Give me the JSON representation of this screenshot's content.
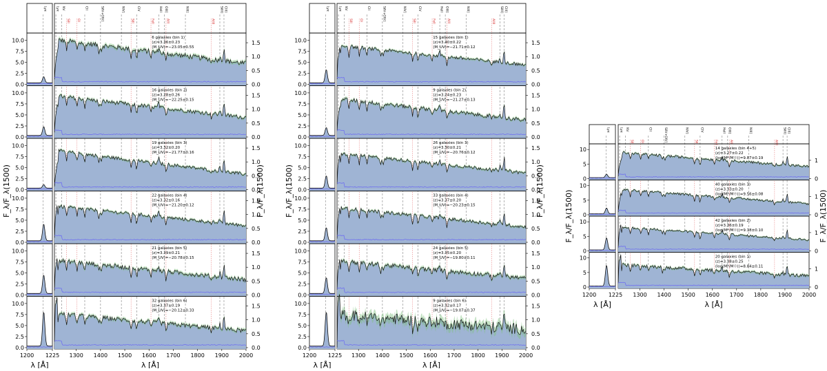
{
  "line_labels": {
    "top": [
      {
        "label": "Lyα",
        "wave": 1216,
        "color": "#333333",
        "style": "dashed"
      },
      {
        "label": "NV",
        "wave": 1240,
        "color": "#333333",
        "style": "dashed"
      },
      {
        "label": "SiII",
        "wave": 1260,
        "color": "#d62728",
        "style": "dotted"
      },
      {
        "label": "OI",
        "wave": 1303,
        "color": "#d62728",
        "style": "dotted"
      },
      {
        "label": "CII",
        "wave": 1335,
        "color": "#333333",
        "style": "dashed"
      },
      {
        "label": "SiIV+OIV]",
        "wave": 1400,
        "color": "#333333",
        "style": "dashed"
      },
      {
        "label": "NIV]",
        "wave": 1486,
        "color": "#333333",
        "style": "dashed"
      },
      {
        "label": "SiII",
        "wave": 1526,
        "color": "#d62728",
        "style": "dotted"
      },
      {
        "label": "CIV",
        "wave": 1549,
        "color": "#333333",
        "style": "dashed"
      },
      {
        "label": "FeII",
        "wave": 1608,
        "color": "#d62728",
        "style": "dotted"
      },
      {
        "label": "HeII",
        "wave": 1640,
        "color": "#333333",
        "style": "dashed"
      },
      {
        "label": "AlII",
        "wave": 1670,
        "color": "#d62728",
        "style": "dotted"
      },
      {
        "label": "OIII]",
        "wave": 1663,
        "color": "#333333",
        "style": "dashed"
      },
      {
        "label": "NIII]",
        "wave": 1750,
        "color": "#333333",
        "style": "dashed"
      },
      {
        "label": "AlIII",
        "wave": 1857,
        "color": "#d62728",
        "style": "dotted"
      },
      {
        "label": "SiIII]",
        "wave": 1892,
        "color": "#333333",
        "style": "dashed"
      },
      {
        "label": "CIII]",
        "wave": 1909,
        "color": "#333333",
        "style": "dashed"
      }
    ]
  },
  "chart_data": [
    {
      "type": "line",
      "panel": "left",
      "xlabel": "λ [Å]",
      "ylabel_left": "F_λ/F_λ(1500)",
      "ylabel_right": "F_λ/F_λ(1500)",
      "xlim_zoom": [
        1200,
        1225
      ],
      "xticks_zoom": [
        "1200",
        "1225"
      ],
      "xlim_main": [
        1210,
        2000
      ],
      "xticks_main": [
        1300,
        1400,
        1500,
        1600,
        1700,
        1800,
        1900,
        2000
      ],
      "ylim_left": [
        0,
        11
      ],
      "yticks_left": [
        "0.0",
        "2.5",
        "5.0",
        "7.5",
        "10.0"
      ],
      "ylim_right": [
        0,
        1.75
      ],
      "yticks_right": [
        "0.0",
        "0.5",
        "1.0",
        "1.5"
      ],
      "series": [
        {
          "text": [
            "6 galaxies (bin 1)",
            "⟨z⟩=3.36±0.23",
            "⟨M_UV⟩=−23.05±0.55"
          ],
          "lya_peak": 1.4,
          "level": 1.3,
          "slope": -0.55,
          "noise": 0.09
        },
        {
          "text": [
            "16 galaxies (bin 2)",
            "⟨z⟩=3.28±0.26",
            "⟨M_UV⟩=−22.25±0.15"
          ],
          "lya_peak": 2.0,
          "level": 1.2,
          "slope": -0.5,
          "noise": 0.07
        },
        {
          "text": [
            "19 galaxies (bin 3)",
            "⟨z⟩=3.32±0.20",
            "⟨M_UV⟩=−21.77±0.16"
          ],
          "lya_peak": 0.8,
          "level": 1.1,
          "slope": -0.55,
          "noise": 0.06
        },
        {
          "text": [
            "22 galaxies (bin 4)",
            "⟨z⟩=3.32±0.16",
            "⟨M_UV⟩=−21.20±0.12"
          ],
          "lya_peak": 3.8,
          "level": 1.05,
          "slope": -0.45,
          "noise": 0.06
        },
        {
          "text": [
            "21 galaxies (bin 5)",
            "⟨z⟩=3.39±0.21",
            "⟨M_UV⟩=−20.78±0.15"
          ],
          "lya_peak": 4.2,
          "level": 1.0,
          "slope": -0.45,
          "noise": 0.08
        },
        {
          "text": [
            "32 galaxies (bin 6)",
            "⟨z⟩=3.37±0.19",
            "⟨M_UV⟩=−20.12±0.33"
          ],
          "lya_peak": 7.8,
          "level": 1.0,
          "slope": -0.4,
          "noise": 0.08
        }
      ]
    },
    {
      "type": "line",
      "panel": "middle",
      "xlabel": "λ [Å]",
      "ylabel_left": "F_λ/F_λ(1500)",
      "ylabel_right": "F_λ/F_λ(1500)",
      "xlim_zoom": [
        1200,
        1225
      ],
      "xticks_zoom": [
        "1200",
        "1225"
      ],
      "xlim_main": [
        1210,
        2000
      ],
      "xticks_main": [
        1300,
        1400,
        1500,
        1600,
        1700,
        1800,
        1900,
        2000
      ],
      "ylim_left": [
        0,
        11
      ],
      "yticks_left": [
        "0.0",
        "2.5",
        "5.0",
        "7.5",
        "10.0"
      ],
      "ylim_right": [
        0,
        1.75
      ],
      "yticks_right": [
        "0.0",
        "0.5",
        "1.0",
        "1.5"
      ],
      "series": [
        {
          "text": [
            "15 galaxies (bin 1)",
            "⟨z⟩=3.40±0.22",
            "⟨M_UV⟩=−21.71±0.12"
          ],
          "lya_peak": 3.0,
          "level": 1.15,
          "slope": -0.45,
          "noise": 0.06
        },
        {
          "text": [
            "9 galaxies (bin 2)",
            "⟨z⟩=3.24±0.23",
            "⟨M_UV⟩=−21.27±0.13"
          ],
          "lya_peak": 1.8,
          "level": 1.1,
          "slope": -0.5,
          "noise": 0.07
        },
        {
          "text": [
            "26 galaxies (bin 3)",
            "⟨z⟩=3.30±0.21",
            "⟨M_UV⟩=−20.76±0.12"
          ],
          "lya_peak": 2.8,
          "level": 1.05,
          "slope": -0.45,
          "noise": 0.06
        },
        {
          "text": [
            "33 galaxies (bin 4)",
            "⟨z⟩=3.37±0.20",
            "⟨M_UV⟩=−20.23±0.15"
          ],
          "lya_peak": 3.0,
          "level": 1.0,
          "slope": -0.45,
          "noise": 0.06
        },
        {
          "text": [
            "24 galaxies (bin 5)",
            "⟨z⟩=3.35±0.20",
            "⟨M_UV⟩=−19.80±0.11"
          ],
          "lya_peak": 3.6,
          "level": 1.0,
          "slope": -0.4,
          "noise": 0.08
        },
        {
          "text": [
            "9 galaxies (bin 6)",
            "⟨z⟩=3.32±0.17",
            "⟨M_UV⟩=−19.07±0.37"
          ],
          "lya_peak": 7.8,
          "level": 1.0,
          "slope": -0.35,
          "noise": 0.2
        }
      ]
    },
    {
      "type": "line",
      "panel": "right",
      "xlabel": "λ [Å]",
      "ylabel_left": "F_λ/F_λ(1500)",
      "ylabel_right": "F_λ/F_λ(1500)",
      "xlim_zoom": [
        1200,
        1225
      ],
      "xticks_zoom": [
        "1200",
        "1225"
      ],
      "xlim_main": [
        1210,
        2000
      ],
      "xticks_main": [
        1300,
        1400,
        1500,
        1600,
        1700,
        1800,
        1900,
        2000
      ],
      "ylim_left": [
        0,
        11
      ],
      "yticks_left": [
        "0",
        "5",
        "10"
      ],
      "ylim_right": [
        0,
        1.75
      ],
      "yticks_right": [
        "0",
        "1"
      ],
      "series": [
        {
          "text": [
            "14 galaxies (bin 4+5)",
            "⟨z⟩=3.27±0.22",
            "⟨log(M*/M☉)⟩=9.87±0.19"
          ],
          "lya_peak": 1.2,
          "level": 1.15,
          "slope": -0.5,
          "noise": 0.07
        },
        {
          "text": [
            "40 galaxies (bin 3)",
            "⟨z⟩=3.33±0.20",
            "⟨log(M*/M☉)⟩=9.56±0.08"
          ],
          "lya_peak": 2.0,
          "level": 1.1,
          "slope": -0.5,
          "noise": 0.06
        },
        {
          "text": [
            "42 galaxies (bin 2)",
            "⟨z⟩=3.36±0.19",
            "⟨log(M*/M☉)⟩=9.18±0.10"
          ],
          "lya_peak": 4.2,
          "level": 1.05,
          "slope": -0.45,
          "noise": 0.06
        },
        {
          "text": [
            "20 galaxies (bin 1)",
            "⟨z⟩=3.38±0.25",
            "⟨log(M*/M☉)⟩=8.84±0.11"
          ],
          "lya_peak": 7.2,
          "level": 1.0,
          "slope": -0.4,
          "noise": 0.09
        }
      ]
    }
  ],
  "colors": {
    "fill": "#9fb4d4",
    "spectrum": "#111111",
    "noise_band": "#7ec17e",
    "error": "#6f6ff0",
    "line_dashed": "#555555",
    "line_dotted": "#e05050",
    "label_red": "#d62728"
  }
}
